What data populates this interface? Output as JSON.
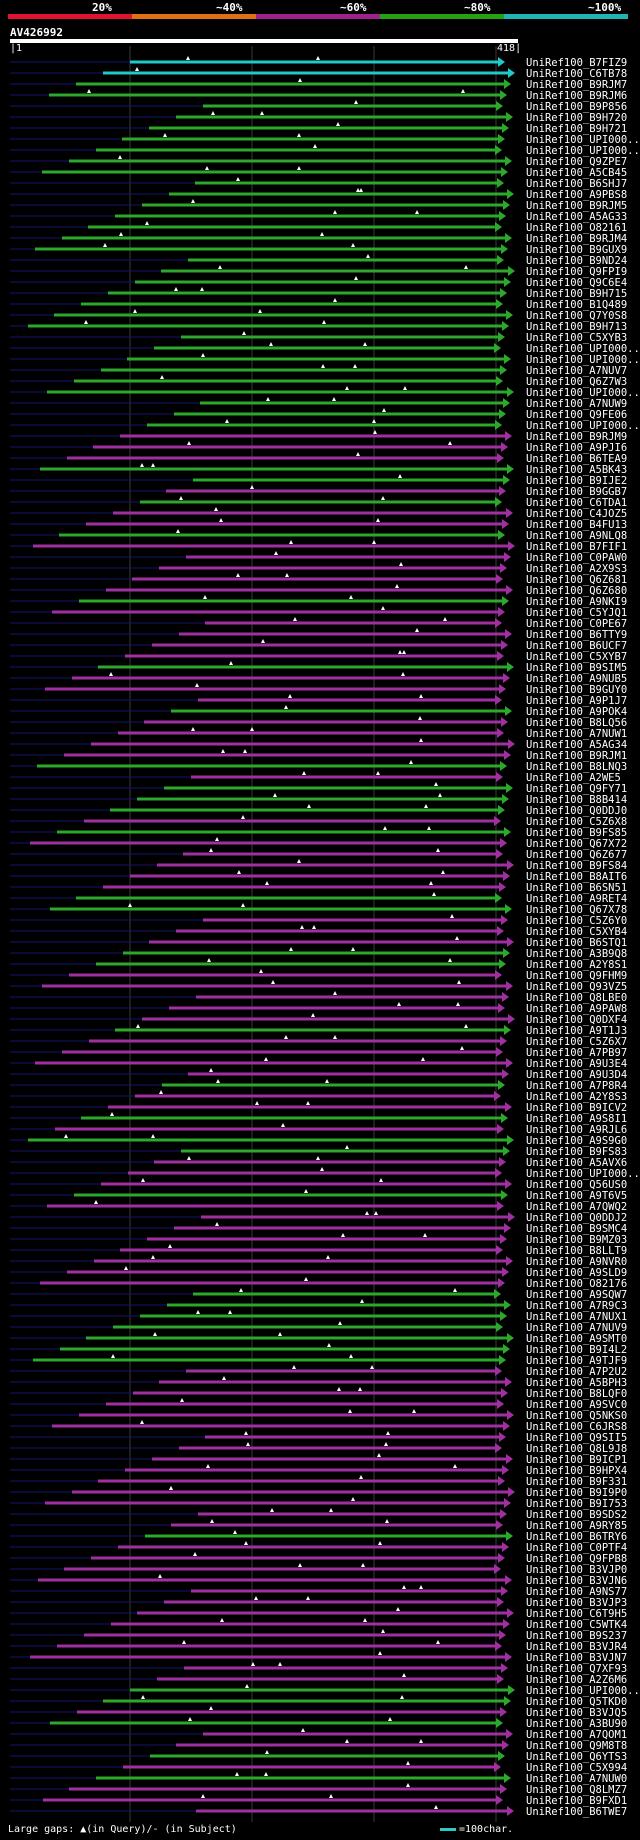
{
  "query_id": "AV426992",
  "ruler": {
    "start": "1",
    "end": "418"
  },
  "identity_scale": [
    {
      "label": "20%",
      "color": "#e0142c"
    },
    {
      "label": "~40%",
      "color": "#e07014"
    },
    {
      "label": "~60%",
      "color": "#a0208c"
    },
    {
      "label": "~80%",
      "color": "#28a014"
    },
    {
      "label": "~100%",
      "color": "#20b4b4"
    }
  ],
  "legend": {
    "text": "Large gaps: ▲(in Query)/- (in Subject)",
    "scale_text": "=100char."
  },
  "hits": [
    {
      "label": "UniRef100_B7FIZ9",
      "color": "cyan"
    },
    {
      "label": "UniRef100_C6TB78",
      "color": "cyan"
    },
    {
      "label": "UniRef100_B9RJM7",
      "color": "green"
    },
    {
      "label": "UniRef100_B9RJM6",
      "color": "green"
    },
    {
      "label": "UniRef100_B9P856",
      "color": "green"
    },
    {
      "label": "UniRef100_B9H720",
      "color": "green"
    },
    {
      "label": "UniRef100_B9H721",
      "color": "green"
    },
    {
      "label": "UniRef100_UPI000..",
      "color": "green"
    },
    {
      "label": "UniRef100_UPI000..",
      "color": "green"
    },
    {
      "label": "UniRef100_Q9ZPE7",
      "color": "green"
    },
    {
      "label": "UniRef100_A5CB45",
      "color": "green"
    },
    {
      "label": "UniRef100_B6SHJ7",
      "color": "green"
    },
    {
      "label": "UniRef100_A9PBS8",
      "color": "green"
    },
    {
      "label": "UniRef100_B9RJM5",
      "color": "green"
    },
    {
      "label": "UniRef100_A5AG33",
      "color": "green"
    },
    {
      "label": "UniRef100_O82161",
      "color": "green"
    },
    {
      "label": "UniRef100_B9RJM4",
      "color": "green"
    },
    {
      "label": "UniRef100_B9GUX9",
      "color": "green"
    },
    {
      "label": "UniRef100_B9ND24",
      "color": "green"
    },
    {
      "label": "UniRef100_Q9FPI9",
      "color": "green"
    },
    {
      "label": "UniRef100_Q9C6E4",
      "color": "green"
    },
    {
      "label": "UniRef100_B9H715",
      "color": "green"
    },
    {
      "label": "UniRef100_B1Q489",
      "color": "green"
    },
    {
      "label": "UniRef100_Q7Y0S8",
      "color": "green"
    },
    {
      "label": "UniRef100_B9H713",
      "color": "green"
    },
    {
      "label": "UniRef100_C5XYB3",
      "color": "green"
    },
    {
      "label": "UniRef100_UPI000..",
      "color": "green"
    },
    {
      "label": "UniRef100_UPI000..",
      "color": "green"
    },
    {
      "label": "UniRef100_A7NUV7",
      "color": "green"
    },
    {
      "label": "UniRef100_Q6Z7W3",
      "color": "green"
    },
    {
      "label": "UniRef100_UPI000..",
      "color": "green"
    },
    {
      "label": "UniRef100_A7NUW9",
      "color": "green"
    },
    {
      "label": "UniRef100_Q9FE06",
      "color": "green"
    },
    {
      "label": "UniRef100_UPI000..",
      "color": "green"
    },
    {
      "label": "UniRef100_B9RJM9",
      "color": "purple"
    },
    {
      "label": "UniRef100_A9PJI6",
      "color": "purple"
    },
    {
      "label": "UniRef100_B6TEA9",
      "color": "purple"
    },
    {
      "label": "UniRef100_A5BK43",
      "color": "green"
    },
    {
      "label": "UniRef100_B9IJE2",
      "color": "green"
    },
    {
      "label": "UniRef100_B9GGB7",
      "color": "purple"
    },
    {
      "label": "UniRef100_C6TDA1",
      "color": "green"
    },
    {
      "label": "UniRef100_C4JOZ5",
      "color": "purple"
    },
    {
      "label": "UniRef100_B4FU13",
      "color": "purple"
    },
    {
      "label": "UniRef100_A9NLQ8",
      "color": "green"
    },
    {
      "label": "UniRef100_B7FIF1",
      "color": "purple"
    },
    {
      "label": "UniRef100_C0PAW0",
      "color": "purple"
    },
    {
      "label": "UniRef100_A2X9S3",
      "color": "purple"
    },
    {
      "label": "UniRef100_Q6Z681",
      "color": "purple"
    },
    {
      "label": "UniRef100_Q6Z680",
      "color": "purple"
    },
    {
      "label": "UniRef100_A9NKI9",
      "color": "green"
    },
    {
      "label": "UniRef100_C5YJQ1",
      "color": "purple"
    },
    {
      "label": "UniRef100_C0PE67",
      "color": "purple"
    },
    {
      "label": "UniRef100_B6TTY9",
      "color": "purple"
    },
    {
      "label": "UniRef100_B6UCF7",
      "color": "purple"
    },
    {
      "label": "UniRef100_C5XYB7",
      "color": "purple"
    },
    {
      "label": "UniRef100_B9SIM5",
      "color": "green"
    },
    {
      "label": "UniRef100_A9NUB5",
      "color": "purple"
    },
    {
      "label": "UniRef100_B9GUY0",
      "color": "purple"
    },
    {
      "label": "UniRef100_A9P1J7",
      "color": "purple"
    },
    {
      "label": "UniRef100_A9POK4",
      "color": "green"
    },
    {
      "label": "UniRef100_B8LQ56",
      "color": "purple"
    },
    {
      "label": "UniRef100_A7NUW1",
      "color": "purple"
    },
    {
      "label": "UniRef100_A5AG34",
      "color": "purple"
    },
    {
      "label": "UniRef100_B9RJM1",
      "color": "purple"
    },
    {
      "label": "UniRef100_B8LNQ3",
      "color": "green"
    },
    {
      "label": "UniRef100_A2WE5",
      "color": "purple"
    },
    {
      "label": "UniRef100_Q9FY71",
      "color": "green"
    },
    {
      "label": "UniRef100_B8B414",
      "color": "green"
    },
    {
      "label": "UniRef100_Q0DDJ0",
      "color": "green"
    },
    {
      "label": "UniRef100_C5Z6X8",
      "color": "purple"
    },
    {
      "label": "UniRef100_B9FS85",
      "color": "green"
    },
    {
      "label": "UniRef100_Q67X72",
      "color": "purple"
    },
    {
      "label": "UniRef100_Q6Z677",
      "color": "purple"
    },
    {
      "label": "UniRef100_B9FS84",
      "color": "purple"
    },
    {
      "label": "UniRef100_B8AIT6",
      "color": "purple"
    },
    {
      "label": "UniRef100_B6SN51",
      "color": "purple"
    },
    {
      "label": "UniRef100_A9RET4",
      "color": "green"
    },
    {
      "label": "UniRef100_Q67X78",
      "color": "green"
    },
    {
      "label": "UniRef100_C5Z6Y0",
      "color": "purple"
    },
    {
      "label": "UniRef100_C5XYB4",
      "color": "purple"
    },
    {
      "label": "UniRef100_B6STQ1",
      "color": "purple"
    },
    {
      "label": "UniRef100_A3B9Q8",
      "color": "green"
    },
    {
      "label": "UniRef100_A2Y8S1",
      "color": "green"
    },
    {
      "label": "UniRef100_Q9FHM9",
      "color": "purple"
    },
    {
      "label": "UniRef100_Q93VZ5",
      "color": "purple"
    },
    {
      "label": "UniRef100_Q8LBE0",
      "color": "purple"
    },
    {
      "label": "UniRef100_A9PAW8",
      "color": "purple"
    },
    {
      "label": "UniRef100_Q0DXF4",
      "color": "purple"
    },
    {
      "label": "UniRef100_A9T1J3",
      "color": "green"
    },
    {
      "label": "UniRef100_C5Z6X7",
      "color": "purple"
    },
    {
      "label": "UniRef100_A7PB97",
      "color": "purple"
    },
    {
      "label": "UniRef100_A9U3E4",
      "color": "purple"
    },
    {
      "label": "UniRef100_A9U3D4",
      "color": "purple"
    },
    {
      "label": "UniRef100_A7P8R4",
      "color": "green"
    },
    {
      "label": "UniRef100_A2Y8S3",
      "color": "purple"
    },
    {
      "label": "UniRef100_B9ICV2",
      "color": "purple"
    },
    {
      "label": "UniRef100_A9S8I1",
      "color": "green"
    },
    {
      "label": "UniRef100_A9RJL6",
      "color": "purple"
    },
    {
      "label": "UniRef100_A9S9G0",
      "color": "green"
    },
    {
      "label": "UniRef100_B9FS83",
      "color": "green"
    },
    {
      "label": "UniRef100_A5AVX6",
      "color": "purple"
    },
    {
      "label": "UniRef100_UPI000..",
      "color": "purple"
    },
    {
      "label": "UniRef100_Q56US0",
      "color": "purple"
    },
    {
      "label": "UniRef100_A9T6V5",
      "color": "green"
    },
    {
      "label": "UniRef100_A7QWQ2",
      "color": "purple"
    },
    {
      "label": "UniRef100_Q0DDJ2",
      "color": "purple"
    },
    {
      "label": "UniRef100_B9SMC4",
      "color": "purple"
    },
    {
      "label": "UniRef100_B9MZ03",
      "color": "purple"
    },
    {
      "label": "UniRef100_B8LLT9",
      "color": "purple"
    },
    {
      "label": "UniRef100_A9NVR0",
      "color": "purple"
    },
    {
      "label": "UniRef100_A9SLD9",
      "color": "purple"
    },
    {
      "label": "UniRef100_O82176",
      "color": "purple"
    },
    {
      "label": "UniRef100_A9SQW7",
      "color": "green"
    },
    {
      "label": "UniRef100_A7R9C3",
      "color": "green"
    },
    {
      "label": "UniRef100_A7NUX1",
      "color": "green"
    },
    {
      "label": "UniRef100_A7NUV9",
      "color": "green"
    },
    {
      "label": "UniRef100_A9SMT0",
      "color": "green"
    },
    {
      "label": "UniRef100_B9I4L2",
      "color": "green"
    },
    {
      "label": "UniRef100_A9TJF9",
      "color": "green"
    },
    {
      "label": "UniRef100_A7P2U2",
      "color": "purple"
    },
    {
      "label": "UniRef100_A5BPH3",
      "color": "purple"
    },
    {
      "label": "UniRef100_B8LQF0",
      "color": "purple"
    },
    {
      "label": "UniRef100_A9SVC0",
      "color": "purple"
    },
    {
      "label": "UniRef100_Q5NKS0",
      "color": "purple"
    },
    {
      "label": "UniRef100_C6JRS8",
      "color": "purple"
    },
    {
      "label": "UniRef100_Q9SII5",
      "color": "purple"
    },
    {
      "label": "UniRef100_Q8L9J8",
      "color": "purple"
    },
    {
      "label": "UniRef100_B9ICP1",
      "color": "purple"
    },
    {
      "label": "UniRef100_B9HPX4",
      "color": "purple"
    },
    {
      "label": "UniRef100_B9F331",
      "color": "purple"
    },
    {
      "label": "UniRef100_B9I9P0",
      "color": "purple"
    },
    {
      "label": "UniRef100_B9I753",
      "color": "purple"
    },
    {
      "label": "UniRef100_B9SDS2",
      "color": "purple"
    },
    {
      "label": "UniRef100_A9RY85",
      "color": "purple"
    },
    {
      "label": "UniRef100_B6TRY6",
      "color": "green"
    },
    {
      "label": "UniRef100_C0PTF4",
      "color": "purple"
    },
    {
      "label": "UniRef100_Q9FPB8",
      "color": "purple"
    },
    {
      "label": "UniRef100_B3VJP0",
      "color": "purple"
    },
    {
      "label": "UniRef100_B3VJN6",
      "color": "purple"
    },
    {
      "label": "UniRef100_A9NS77",
      "color": "purple"
    },
    {
      "label": "UniRef100_B3VJP3",
      "color": "purple"
    },
    {
      "label": "UniRef100_C6T9H5",
      "color": "purple"
    },
    {
      "label": "UniRef100_C5WTK4",
      "color": "purple"
    },
    {
      "label": "UniRef100_B9S237",
      "color": "purple"
    },
    {
      "label": "UniRef100_B3VJR4",
      "color": "purple"
    },
    {
      "label": "UniRef100_B3VJN7",
      "color": "purple"
    },
    {
      "label": "UniRef100_Q7XF93",
      "color": "purple"
    },
    {
      "label": "UniRef100_A2Z6M6",
      "color": "purple"
    },
    {
      "label": "UniRef100_UPI000..",
      "color": "green"
    },
    {
      "label": "UniRef100_Q5TKD0",
      "color": "green"
    },
    {
      "label": "UniRef100_B3VJQ5",
      "color": "purple"
    },
    {
      "label": "UniRef100_A3BU90",
      "color": "green"
    },
    {
      "label": "UniRef100_A7QOM1",
      "color": "purple"
    },
    {
      "label": "UniRef100_Q9M8T8",
      "color": "purple"
    },
    {
      "label": "UniRef100_Q6YTS3",
      "color": "green"
    },
    {
      "label": "UniRef100_C5X994",
      "color": "purple"
    },
    {
      "label": "UniRef100_A7NUW0",
      "color": "green"
    },
    {
      "label": "UniRef100_Q8LMZ7",
      "color": "purple"
    },
    {
      "label": "UniRef100_B9FXD1",
      "color": "purple"
    },
    {
      "label": "UniRef100_B6TWE7",
      "color": "purple"
    }
  ]
}
